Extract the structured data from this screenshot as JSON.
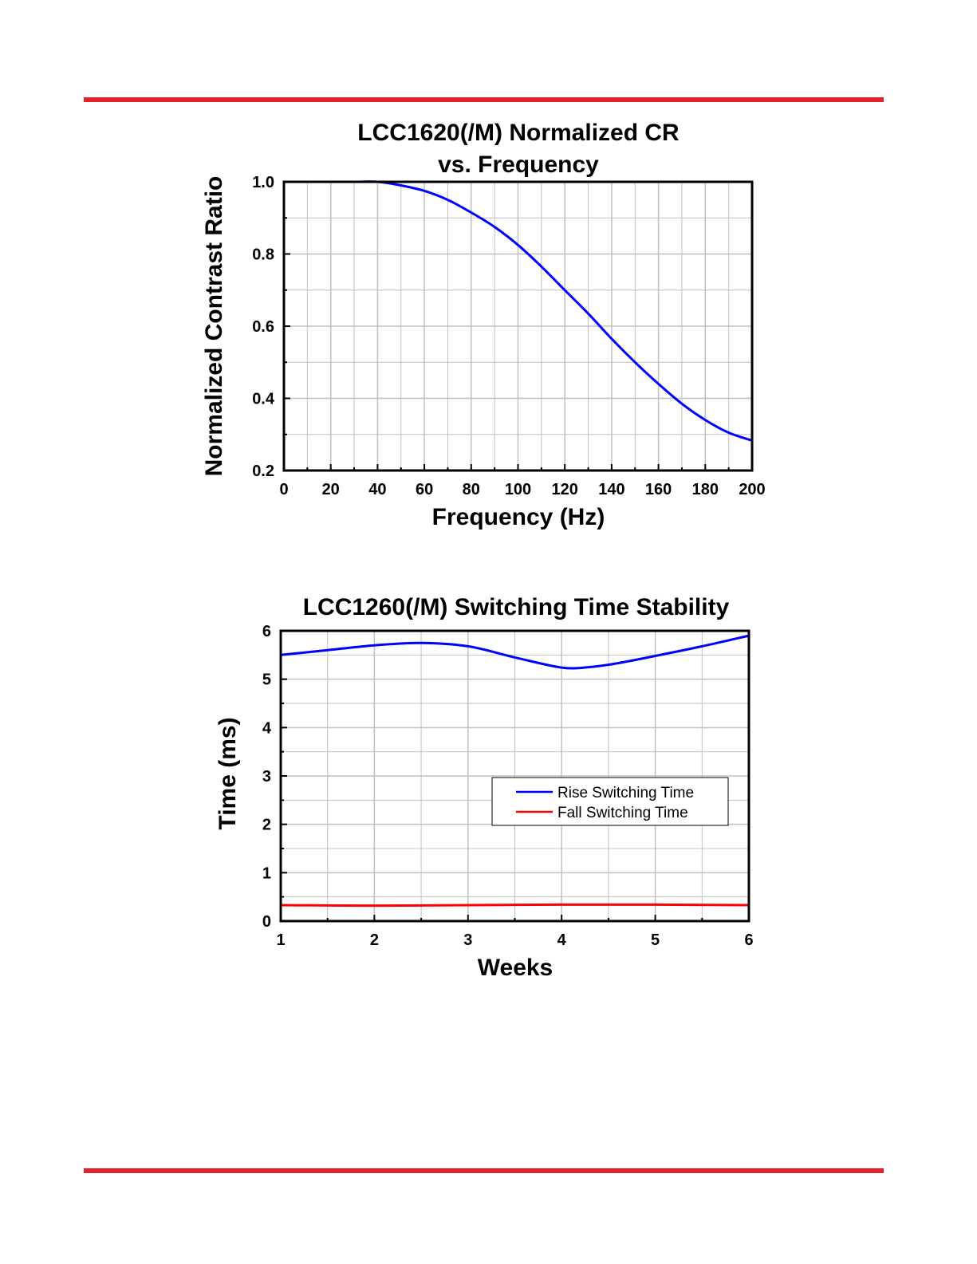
{
  "colors": {
    "rule": "#e3222b",
    "blue": "#0000ff",
    "red": "#ff0000",
    "grid": "#c0c0c0"
  },
  "chart_data": [
    {
      "type": "line",
      "title": [
        "LCC1620(/M) Normalized CR",
        "vs. Frequency"
      ],
      "xlabel": "Frequency (Hz)",
      "ylabel": "Normalized Contrast Ratio",
      "xlim": [
        0,
        200
      ],
      "ylim": [
        0.2,
        1.0
      ],
      "xticks": [
        "0",
        "20",
        "40",
        "60",
        "80",
        "100",
        "120",
        "140",
        "160",
        "180",
        "200"
      ],
      "yticks": [
        "0.2",
        "0.4",
        "0.6",
        "0.8",
        "1.0"
      ],
      "grid": true,
      "series": [
        {
          "color": "#0000ff",
          "x": [
            0,
            10,
            20,
            30,
            40,
            50,
            60,
            70,
            80,
            90,
            100,
            110,
            120,
            130,
            140,
            150,
            160,
            170,
            180,
            190,
            200
          ],
          "y": [
            1.0,
            1.0,
            1.0,
            1.0,
            1.0,
            0.99,
            0.975,
            0.95,
            0.915,
            0.875,
            0.825,
            0.765,
            0.7,
            0.635,
            0.565,
            0.5,
            0.44,
            0.385,
            0.34,
            0.305,
            0.283
          ]
        }
      ]
    },
    {
      "type": "line",
      "title": "LCC1260(/M) Switching Time Stability",
      "xlabel": "Weeks",
      "ylabel": "Time (ms)",
      "xlim": [
        1,
        6
      ],
      "ylim": [
        0,
        6
      ],
      "xticks": [
        "1",
        "2",
        "3",
        "4",
        "5",
        "6"
      ],
      "yticks": [
        "0",
        "1",
        "2",
        "3",
        "4",
        "5",
        "6"
      ],
      "grid": true,
      "legend_position": "right-middle",
      "series": [
        {
          "name": "Rise Switching Time",
          "color": "#0000ff",
          "x": [
            1,
            1.5,
            2,
            2.5,
            3,
            3.5,
            4,
            4.3,
            4.6,
            5,
            5.5,
            6
          ],
          "y": [
            5.5,
            5.6,
            5.7,
            5.75,
            5.68,
            5.45,
            5.24,
            5.25,
            5.33,
            5.48,
            5.68,
            5.9
          ]
        },
        {
          "name": "Fall Switching Time",
          "color": "#ff0000",
          "x": [
            1,
            2,
            3,
            4,
            5,
            6
          ],
          "y": [
            0.33,
            0.32,
            0.33,
            0.34,
            0.34,
            0.33
          ]
        }
      ]
    }
  ]
}
